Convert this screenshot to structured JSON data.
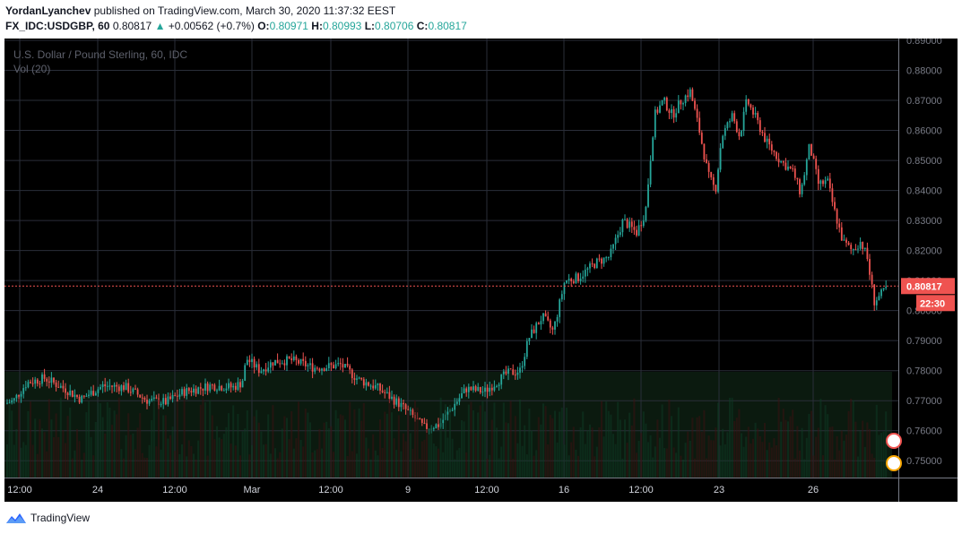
{
  "header": {
    "author": "YordanLyanchev",
    "published_text": "published on TradingView.com, March 30, 2020 11:37:32 EEST",
    "symbol": "FX_IDC:USDGBP, 60",
    "last": "0.80817",
    "change": "+0.00562 (+0.7%)",
    "open_label": "O:",
    "open": "0.80971",
    "high_label": "H:",
    "high": "0.80993",
    "low_label": "L:",
    "low": "0.80706",
    "close_label": "C:",
    "close": "0.80817"
  },
  "chart_data": {
    "type": "candlestick",
    "legend": "U.S. Dollar / Pound Sterling, 60, IDC",
    "volume_legend": "Vol (20)",
    "ylim": [
      0.745,
      0.89
    ],
    "y_ticks": [
      "0.89000",
      "0.88000",
      "0.87000",
      "0.86000",
      "0.85000",
      "0.84000",
      "0.83000",
      "0.82000",
      "0.81000",
      "0.80000",
      "0.79000",
      "0.78000",
      "0.77000",
      "0.76000",
      "0.75000"
    ],
    "x_ticks": [
      "12:00",
      "24",
      "12:00",
      "Mar",
      "12:00",
      "9",
      "12:00",
      "16",
      "12:00",
      "23",
      "26"
    ],
    "price_path": [
      [
        0,
        0.769
      ],
      [
        10,
        0.77
      ],
      [
        25,
        0.776
      ],
      [
        45,
        0.7775
      ],
      [
        70,
        0.7735
      ],
      [
        85,
        0.7705
      ],
      [
        110,
        0.775
      ],
      [
        135,
        0.7745
      ],
      [
        160,
        0.77
      ],
      [
        180,
        0.7695
      ],
      [
        200,
        0.773
      ],
      [
        230,
        0.775
      ],
      [
        255,
        0.7745
      ],
      [
        265,
        0.776
      ],
      [
        270,
        0.784
      ],
      [
        285,
        0.78
      ],
      [
        300,
        0.783
      ],
      [
        320,
        0.7835
      ],
      [
        345,
        0.781
      ],
      [
        365,
        0.7815
      ],
      [
        375,
        0.782
      ],
      [
        395,
        0.777
      ],
      [
        415,
        0.7745
      ],
      [
        440,
        0.769
      ],
      [
        455,
        0.765
      ],
      [
        468,
        0.761
      ],
      [
        485,
        0.762
      ],
      [
        500,
        0.768
      ],
      [
        515,
        0.774
      ],
      [
        535,
        0.773
      ],
      [
        548,
        0.776
      ],
      [
        560,
        0.779
      ],
      [
        575,
        0.78
      ],
      [
        585,
        0.791
      ],
      [
        600,
        0.798
      ],
      [
        612,
        0.793
      ],
      [
        625,
        0.81
      ],
      [
        640,
        0.811
      ],
      [
        660,
        0.816
      ],
      [
        675,
        0.818
      ],
      [
        690,
        0.83
      ],
      [
        705,
        0.826
      ],
      [
        715,
        0.833
      ],
      [
        725,
        0.865
      ],
      [
        735,
        0.87
      ],
      [
        745,
        0.865
      ],
      [
        755,
        0.87
      ],
      [
        765,
        0.873
      ],
      [
        775,
        0.86
      ],
      [
        785,
        0.845
      ],
      [
        793,
        0.84
      ],
      [
        800,
        0.858
      ],
      [
        812,
        0.865
      ],
      [
        820,
        0.858
      ],
      [
        828,
        0.87
      ],
      [
        838,
        0.864
      ],
      [
        850,
        0.856
      ],
      [
        865,
        0.85
      ],
      [
        880,
        0.846
      ],
      [
        888,
        0.839
      ],
      [
        898,
        0.855
      ],
      [
        908,
        0.842
      ],
      [
        918,
        0.843
      ],
      [
        925,
        0.834
      ],
      [
        935,
        0.823
      ],
      [
        945,
        0.82
      ],
      [
        955,
        0.823
      ],
      [
        962,
        0.818
      ],
      [
        970,
        0.803
      ],
      [
        980,
        0.806
      ],
      [
        985,
        0.8082
      ]
    ],
    "last_price_label": "0.80817",
    "last_price": 0.80817,
    "countdown": "22:30",
    "up_color": "#26a69a",
    "down_color": "#ef5350",
    "price_line_color": "#ef5350"
  }
}
